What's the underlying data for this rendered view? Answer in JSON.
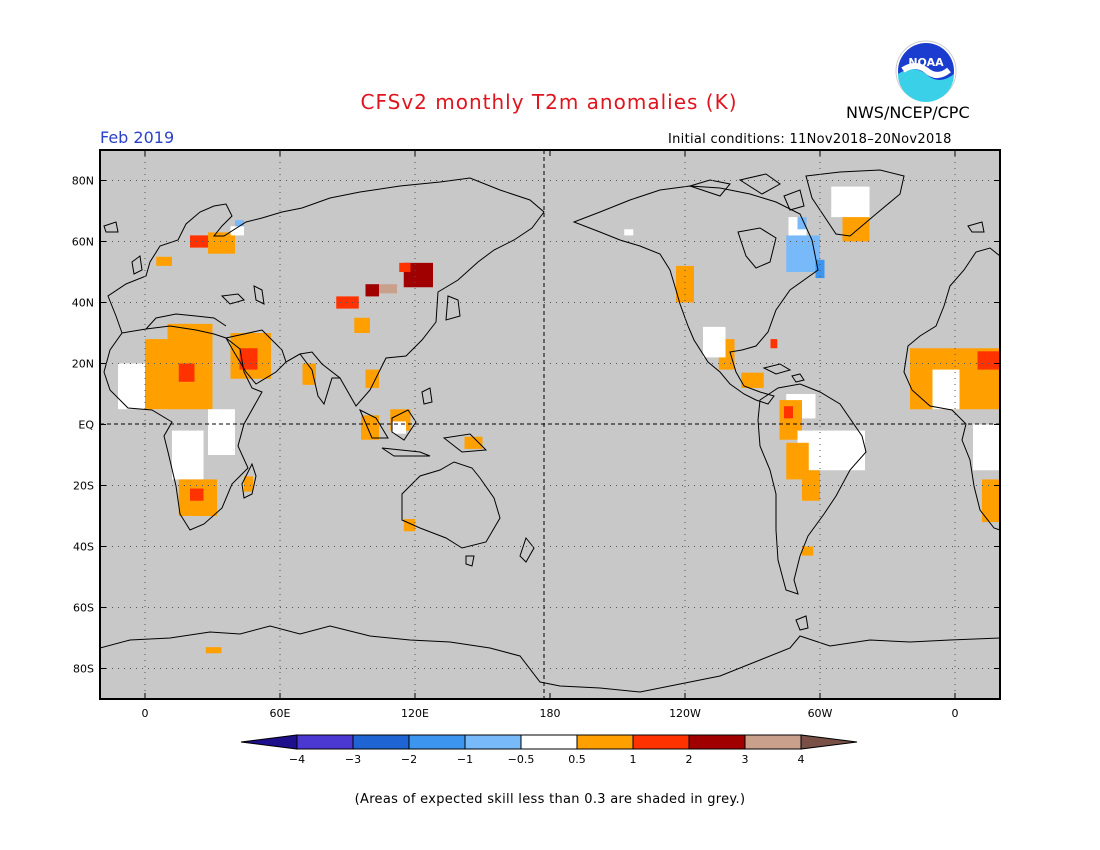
{
  "title": "CFSv2 monthly T2m anomalies (K)",
  "agency": "NWS/NCEP/CPC",
  "logo_text": "NOAA",
  "valid_month": "Feb 2019",
  "initial_conditions": "Initial conditions: 11Nov2018–20Nov2018",
  "footnote": "(Areas of expected skill less than 0.3 are shaded in grey.)",
  "map": {
    "projection": "equirectangular",
    "lon_range": [
      -20,
      380
    ],
    "lat_range": [
      -90,
      90
    ],
    "background_color": "#c8c8c8",
    "lat_ticks": [
      {
        "lat": 80,
        "label": "80N"
      },
      {
        "lat": 60,
        "label": "60N"
      },
      {
        "lat": 40,
        "label": "40N"
      },
      {
        "lat": 20,
        "label": "20N"
      },
      {
        "lat": 0,
        "label": "EQ"
      },
      {
        "lat": -20,
        "label": "20S"
      },
      {
        "lat": -40,
        "label": "40S"
      },
      {
        "lat": -60,
        "label": "60S"
      },
      {
        "lat": -80,
        "label": "80S"
      }
    ],
    "lon_ticks": [
      {
        "lon": 0,
        "label": "0"
      },
      {
        "lon": 60,
        "label": "60E"
      },
      {
        "lon": 120,
        "label": "120E"
      },
      {
        "lon": 180,
        "label": "180"
      },
      {
        "lon": 240,
        "label": "120W"
      },
      {
        "lon": 300,
        "label": "60W"
      },
      {
        "lon": 360,
        "label": "0"
      }
    ]
  },
  "colorbar": {
    "colors": [
      "#1e0f8c",
      "#4b37d2",
      "#1e64d2",
      "#3c96f0",
      "#78b9fa",
      "#ffffff",
      "#ffa000",
      "#ff3200",
      "#a00000",
      "#c8a08c",
      "#785046"
    ],
    "labels": [
      "−4",
      "−3",
      "−2",
      "−1",
      "−0.5",
      "0.5",
      "1",
      "2",
      "3",
      "4"
    ]
  },
  "anomaly_regions": [
    {
      "name": "sahel-west",
      "lon0": -12,
      "lon1": 10,
      "lat0": 5,
      "lat1": 20,
      "color": "#ffffff"
    },
    {
      "name": "west-africa-warm",
      "lon0": 0,
      "lon1": 30,
      "lat0": 5,
      "lat1": 28,
      "color": "#ffa000"
    },
    {
      "name": "north-africa-warm",
      "lon0": 10,
      "lon1": 30,
      "lat0": 22,
      "lat1": 33,
      "color": "#ffa000"
    },
    {
      "name": "chad-hot",
      "lon0": 15,
      "lon1": 22,
      "lat0": 14,
      "lat1": 20,
      "color": "#ff3200"
    },
    {
      "name": "arabia-warm",
      "lon0": 38,
      "lon1": 56,
      "lat0": 15,
      "lat1": 30,
      "color": "#ffa000"
    },
    {
      "name": "arabia-hot",
      "lon0": 42,
      "lon1": 50,
      "lat0": 18,
      "lat1": 25,
      "color": "#ff3200"
    },
    {
      "name": "east-africa-white",
      "lon0": 28,
      "lon1": 40,
      "lat0": -10,
      "lat1": 5,
      "color": "#ffffff"
    },
    {
      "name": "central-africa-white",
      "lon0": 12,
      "lon1": 26,
      "lat0": -18,
      "lat1": -2,
      "color": "#ffffff"
    },
    {
      "name": "southern-africa-warm",
      "lon0": 15,
      "lon1": 32,
      "lat0": -30,
      "lat1": -18,
      "color": "#ffa000"
    },
    {
      "name": "southern-africa-hot",
      "lon0": 20,
      "lon1": 26,
      "lat0": -25,
      "lat1": -21,
      "color": "#ff3200"
    },
    {
      "name": "madagascar-warm",
      "lon0": 44,
      "lon1": 48,
      "lat0": -22,
      "lat1": -17,
      "color": "#ffa000"
    },
    {
      "name": "scandinavia-warm",
      "lon0": 20,
      "lon1": 28,
      "lat0": 58,
      "lat1": 62,
      "color": "#ff3200"
    },
    {
      "name": "russia-warm",
      "lon0": 28,
      "lon1": 40,
      "lat0": 56,
      "lat1": 63,
      "color": "#ffa000"
    },
    {
      "name": "barents-white",
      "lon0": 38,
      "lon1": 44,
      "lat0": 62,
      "lat1": 65,
      "color": "#ffffff"
    },
    {
      "name": "barents-blue",
      "lon0": 40,
      "lon1": 44,
      "lat0": 65,
      "lat1": 67,
      "color": "#78b9fa"
    },
    {
      "name": "europe-warm",
      "lon0": 5,
      "lon1": 12,
      "lat0": 52,
      "lat1": 55,
      "color": "#ffa000"
    },
    {
      "name": "mongolia-hot",
      "lon0": 115,
      "lon1": 128,
      "lat0": 45,
      "lat1": 53,
      "color": "#a00000"
    },
    {
      "name": "mongolia-red",
      "lon0": 113,
      "lon1": 118,
      "lat0": 50,
      "lat1": 53,
      "color": "#ff3200"
    },
    {
      "name": "north-china-hot",
      "lon0": 98,
      "lon1": 104,
      "lat0": 42,
      "lat1": 46,
      "color": "#a00000"
    },
    {
      "name": "north-china-tan",
      "lon0": 104,
      "lon1": 112,
      "lat0": 43,
      "lat1": 46,
      "color": "#c8a08c"
    },
    {
      "name": "central-asia-red",
      "lon0": 85,
      "lon1": 95,
      "lat0": 38,
      "lat1": 42,
      "color": "#ff3200"
    },
    {
      "name": "tibet-warm",
      "lon0": 93,
      "lon1": 100,
      "lat0": 30,
      "lat1": 35,
      "color": "#ffa000"
    },
    {
      "name": "india-warm",
      "lon0": 70,
      "lon1": 76,
      "lat0": 13,
      "lat1": 20,
      "color": "#ffa000"
    },
    {
      "name": "se-asia-warm",
      "lon0": 98,
      "lon1": 104,
      "lat0": 12,
      "lat1": 18,
      "color": "#ffa000"
    },
    {
      "name": "borneo-warm",
      "lon0": 109,
      "lon1": 118,
      "lat0": -2,
      "lat1": 5,
      "color": "#ffa000"
    },
    {
      "name": "borneo-white",
      "lon0": 110,
      "lon1": 116,
      "lat0": -3,
      "lat1": 1,
      "color": "#ffffff"
    },
    {
      "name": "new-guinea-warm",
      "lon0": 142,
      "lon1": 150,
      "lat0": -8,
      "lat1": -4,
      "color": "#ffa000"
    },
    {
      "name": "sumatra-warm",
      "lon0": 96,
      "lon1": 104,
      "lat0": -5,
      "lat1": 3,
      "color": "#ffa000"
    },
    {
      "name": "w-australia-warm",
      "lon0": 115,
      "lon1": 120,
      "lat0": -35,
      "lat1": -31,
      "color": "#ffa000"
    },
    {
      "name": "antarctic-warm",
      "lon0": 27,
      "lon1": 34,
      "lat0": -75,
      "lat1": -73,
      "color": "#ffa000"
    },
    {
      "name": "pacific-nw-warm",
      "lon0": 236,
      "lon1": 244,
      "lat0": 40,
      "lat1": 52,
      "color": "#ffa000"
    },
    {
      "name": "alaska-white",
      "lon0": 213,
      "lon1": 217,
      "lat0": 62,
      "lat1": 64,
      "color": "#ffffff"
    },
    {
      "name": "hudson-blue",
      "lon0": 285,
      "lon1": 300,
      "lat0": 50,
      "lat1": 62,
      "color": "#78b9fa"
    },
    {
      "name": "labrador-blue",
      "lon0": 298,
      "lon1": 302,
      "lat0": 48,
      "lat1": 54,
      "color": "#3c96f0"
    },
    {
      "name": "baffin-white",
      "lon0": 286,
      "lon1": 294,
      "lat0": 62,
      "lat1": 68,
      "color": "#ffffff"
    },
    {
      "name": "baffin-blue",
      "lon0": 290,
      "lon1": 294,
      "lat0": 64,
      "lat1": 68,
      "color": "#78b9fa"
    },
    {
      "name": "greenland-warm",
      "lon0": 310,
      "lon1": 322,
      "lat0": 60,
      "lat1": 70,
      "color": "#ffa000"
    },
    {
      "name": "greenland-white",
      "lon0": 305,
      "lon1": 322,
      "lat0": 68,
      "lat1": 78,
      "color": "#ffffff"
    },
    {
      "name": "florida-red",
      "lon0": 278,
      "lon1": 281,
      "lat0": 25,
      "lat1": 28,
      "color": "#ff3200"
    },
    {
      "name": "mexico-warm",
      "lon0": 255,
      "lon1": 262,
      "lat0": 18,
      "lat1": 28,
      "color": "#ffa000"
    },
    {
      "name": "mexico-white",
      "lon0": 248,
      "lon1": 258,
      "lat0": 22,
      "lat1": 32,
      "color": "#ffffff"
    },
    {
      "name": "central-am-warm",
      "lon0": 265,
      "lon1": 275,
      "lat0": 12,
      "lat1": 17,
      "color": "#ffa000"
    },
    {
      "name": "venezuela-white",
      "lon0": 285,
      "lon1": 298,
      "lat0": 2,
      "lat1": 10,
      "color": "#ffffff"
    },
    {
      "name": "colombia-warm",
      "lon0": 282,
      "lon1": 292,
      "lat0": -5,
      "lat1": 8,
      "color": "#ffa000"
    },
    {
      "name": "colombia-hot",
      "lon0": 284,
      "lon1": 288,
      "lat0": 2,
      "lat1": 6,
      "color": "#ff3200"
    },
    {
      "name": "amazon-white",
      "lon0": 290,
      "lon1": 320,
      "lat0": -15,
      "lat1": -2,
      "color": "#ffffff"
    },
    {
      "name": "peru-warm",
      "lon0": 285,
      "lon1": 295,
      "lat0": -18,
      "lat1": -6,
      "color": "#ffa000"
    },
    {
      "name": "bolivia-warm",
      "lon0": 292,
      "lon1": 300,
      "lat0": -25,
      "lat1": -15,
      "color": "#ffa000"
    },
    {
      "name": "argentina-warm",
      "lon0": 292,
      "lon1": 297,
      "lat0": -43,
      "lat1": -40,
      "color": "#ffa000"
    },
    {
      "name": "w-africa-wrap-warm",
      "lon0": 340,
      "lon1": 380,
      "lat0": 5,
      "lat1": 25,
      "color": "#ffa000"
    },
    {
      "name": "w-africa-wrap-white",
      "lon0": 350,
      "lon1": 362,
      "lat0": 5,
      "lat1": 18,
      "color": "#ffffff"
    },
    {
      "name": "e-africa-wrap-white",
      "lon0": 368,
      "lon1": 380,
      "lat0": -15,
      "lat1": 0,
      "color": "#ffffff"
    },
    {
      "name": "s-africa-wrap-warm",
      "lon0": 372,
      "lon1": 380,
      "lat0": -32,
      "lat1": -18,
      "color": "#ffa000"
    },
    {
      "name": "n-africa-wrap-hot",
      "lon0": 370,
      "lon1": 380,
      "lat0": 18,
      "lat1": 24,
      "color": "#ff3200"
    }
  ]
}
